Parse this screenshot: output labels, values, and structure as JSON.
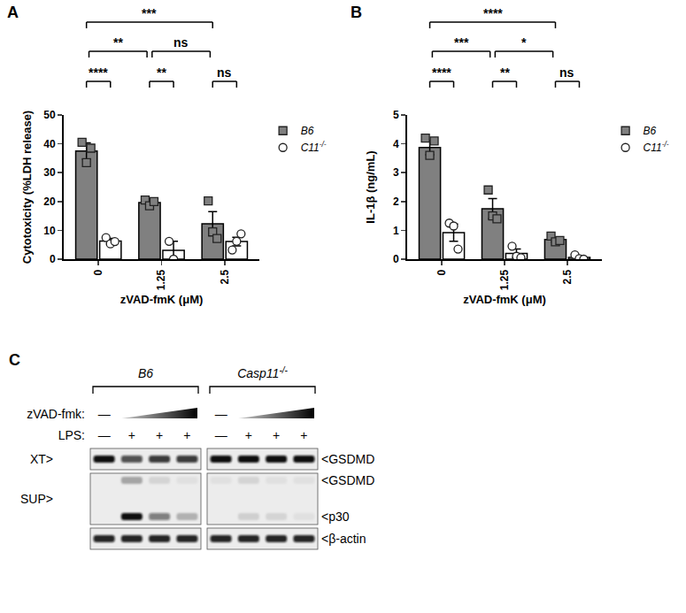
{
  "chart_data": [
    {
      "panel_label": "A",
      "type": "bar",
      "x_label": "zVAD-fmK (μM)",
      "y_label": "Cytotoxicity (%LDH release)",
      "categories": [
        "0",
        "1.25",
        "2.5"
      ],
      "ylim": [
        0,
        50
      ],
      "yticks": [
        0,
        10,
        20,
        30,
        40,
        50
      ],
      "grid": false,
      "legend": "right",
      "series": [
        {
          "name": "B6",
          "color": "#808080",
          "marker": "square",
          "values": [
            37.5,
            19.6,
            12.3
          ],
          "errors": [
            2.8,
            0.8,
            4.2
          ],
          "points": [
            [
              40.5,
              33.5,
              38.5
            ],
            [
              20.5,
              18.5,
              20.0
            ],
            [
              20.2,
              9.5,
              7.2
            ]
          ]
        },
        {
          "name": "C11",
          "sup": "-/-",
          "color": "#ffffff",
          "marker": "circle",
          "values": [
            6.3,
            3.1,
            6.1
          ],
          "errors": [
            0.9,
            3.1,
            1.5
          ],
          "points": [
            [
              7.5,
              5.3,
              6.1
            ],
            [
              6.2,
              0.0
            ],
            [
              3.2,
              6.2,
              8.8
            ]
          ]
        }
      ],
      "comparisons": [
        {
          "categories": [
            "0",
            "0"
          ],
          "series": [
            "B6",
            "C11"
          ],
          "label": "****"
        },
        {
          "categories": [
            "1.25",
            "1.25"
          ],
          "series": [
            "B6",
            "C11"
          ],
          "label": "**"
        },
        {
          "categories": [
            "2.5",
            "2.5"
          ],
          "series": [
            "B6",
            "C11"
          ],
          "label": "ns"
        },
        {
          "categories": [
            "0",
            "1.25"
          ],
          "series": [
            "B6",
            "B6"
          ],
          "label": "**"
        },
        {
          "categories": [
            "1.25",
            "2.5"
          ],
          "series": [
            "B6",
            "B6"
          ],
          "label": "ns"
        },
        {
          "categories": [
            "0",
            "2.5"
          ],
          "series": [
            "B6",
            "B6"
          ],
          "label": "***"
        }
      ]
    },
    {
      "panel_label": "B",
      "type": "bar",
      "x_label": "zVAD-fmK (μM)",
      "y_label": "IL-1β (ng/mL)",
      "categories": [
        "0",
        "1.25",
        "2.5"
      ],
      "ylim": [
        0,
        5
      ],
      "yticks": [
        0,
        1,
        2,
        3,
        4,
        5
      ],
      "grid": false,
      "legend": "right",
      "series": [
        {
          "name": "B6",
          "color": "#808080",
          "marker": "square",
          "values": [
            3.87,
            1.75,
            0.68
          ],
          "errors": [
            0.25,
            0.35,
            0.08
          ],
          "points": [
            [
              4.2,
              3.6,
              4.1
            ],
            [
              2.4,
              1.5,
              1.4
            ],
            [
              0.8,
              0.6,
              0.65
            ]
          ]
        },
        {
          "name": "C11",
          "sup": "-/-",
          "color": "#ffffff",
          "marker": "circle",
          "values": [
            0.92,
            0.2,
            0.06
          ],
          "errors": [
            0.3,
            0.15,
            0.05
          ],
          "points": [
            [
              1.25,
              1.15,
              0.35
            ],
            [
              0.45,
              0.1,
              0.05
            ],
            [
              0.15,
              0.02,
              0.0
            ]
          ]
        }
      ],
      "comparisons": [
        {
          "categories": [
            "0",
            "0"
          ],
          "series": [
            "B6",
            "C11"
          ],
          "label": "****"
        },
        {
          "categories": [
            "1.25",
            "1.25"
          ],
          "series": [
            "B6",
            "C11"
          ],
          "label": "**"
        },
        {
          "categories": [
            "2.5",
            "2.5"
          ],
          "series": [
            "B6",
            "C11"
          ],
          "label": "ns"
        },
        {
          "categories": [
            "0",
            "1.25"
          ],
          "series": [
            "B6",
            "B6"
          ],
          "label": "***"
        },
        {
          "categories": [
            "1.25",
            "2.5"
          ],
          "series": [
            "B6",
            "B6"
          ],
          "label": "*"
        },
        {
          "categories": [
            "0",
            "2.5"
          ],
          "series": [
            "B6",
            "B6"
          ],
          "label": "****"
        }
      ]
    }
  ],
  "blot": {
    "panel_label": "C",
    "groups": [
      {
        "name": "B6"
      },
      {
        "name": "Casp11",
        "sup": "-/-"
      }
    ],
    "zvad": {
      "label": "zVAD-fmk:",
      "none": "—"
    },
    "lps": {
      "label": "LPS:",
      "marks": [
        "—",
        "+",
        "+",
        "+"
      ]
    },
    "panels": [
      {
        "left": "XT>",
        "bands": [
          {
            "label": "<GSDMD",
            "intensity": [
              [
                1.0,
                0.7,
                0.8,
                0.8
              ],
              [
                1.0,
                1.0,
                1.0,
                1.0
              ]
            ]
          }
        ]
      },
      {
        "left": "SUP>",
        "bands": [
          {
            "label": "<GSDMD",
            "intensity": [
              [
                0.0,
                0.3,
                0.1,
                0.05
              ],
              [
                0.05,
                0.1,
                0.05,
                0.05
              ]
            ]
          },
          {
            "label": "<p30",
            "intensity": [
              [
                0.0,
                1.0,
                0.5,
                0.25
              ],
              [
                0.0,
                0.12,
                0.1,
                0.05
              ]
            ]
          }
        ]
      },
      {
        "bands": [
          {
            "label": "<β-actin",
            "intensity": [
              [
                0.9,
                0.9,
                0.9,
                0.9
              ],
              [
                0.9,
                0.9,
                0.9,
                0.9
              ]
            ]
          }
        ]
      }
    ]
  }
}
